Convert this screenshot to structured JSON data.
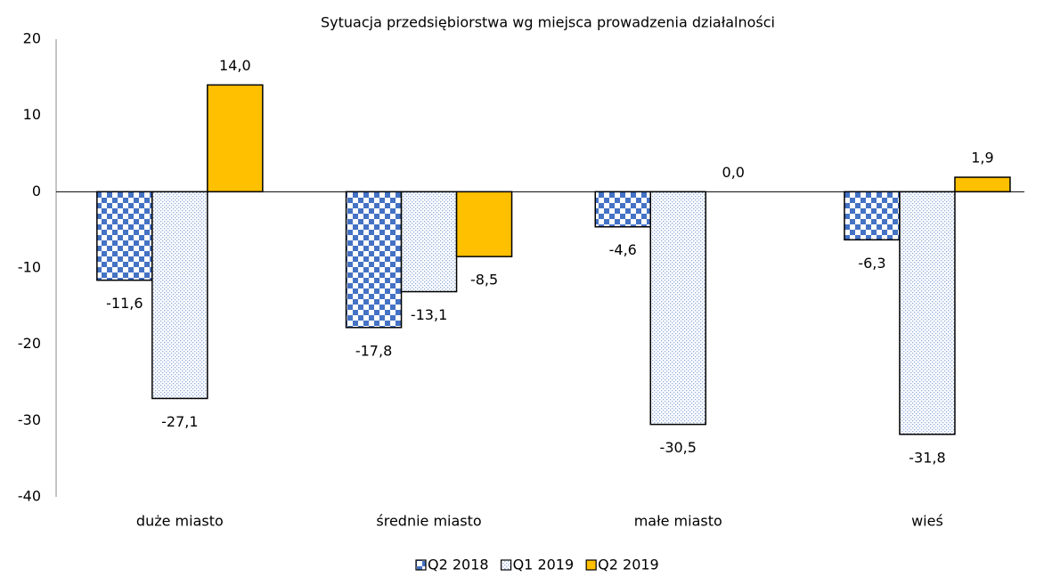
{
  "chart_data": {
    "type": "bar",
    "title": "Sytuacja przedsiębiorstwa wg miejsca prowadzenia działalności",
    "categories": [
      "duże miasto",
      "średnie miasto",
      "małe miasto",
      "wieś"
    ],
    "series": [
      {
        "name": "Q2 2018",
        "color": "#4472c4",
        "pattern": "checkerboard",
        "values": [
          -11.6,
          -17.8,
          -4.6,
          -6.3
        ],
        "value_labels": [
          "-11,6",
          "-17,8",
          "-4,6",
          "-6,3"
        ]
      },
      {
        "name": "Q1 2019",
        "color": "#8faadc",
        "pattern": "dots",
        "values": [
          -27.1,
          -13.1,
          -30.5,
          -31.8
        ],
        "value_labels": [
          "-27,1",
          "-13,1",
          "-30,5",
          "-31,8"
        ]
      },
      {
        "name": "Q2 2019",
        "color": "#ffc000",
        "pattern": "solid",
        "values": [
          14.0,
          -8.5,
          0.0,
          1.9
        ],
        "value_labels": [
          "14,0",
          "-8,5",
          "0,0",
          "1,9"
        ]
      }
    ],
    "ylim": [
      -40,
      20
    ],
    "yticks": [
      -40,
      -30,
      -20,
      -10,
      0,
      10,
      20
    ],
    "grid": false,
    "legend": "bottom"
  }
}
